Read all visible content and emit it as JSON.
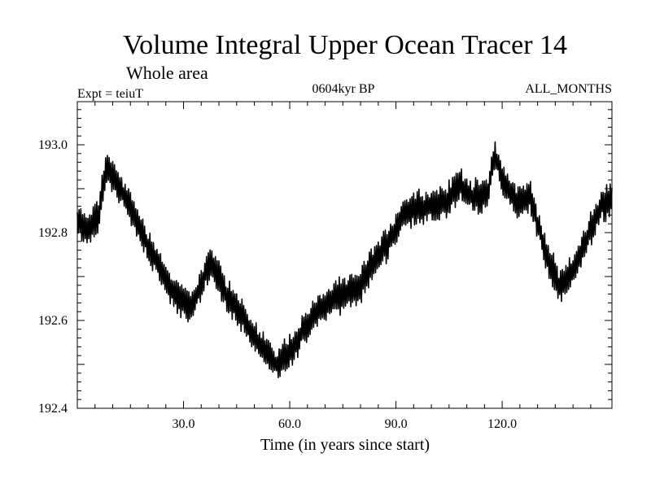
{
  "chart_data": {
    "type": "line",
    "title": "Volume Integral Upper Ocean Tracer 14",
    "subtitle": "Whole area",
    "experiment_label": "Expt = teiuT",
    "period_label": "0604kyr BP",
    "months_label": "ALL_MONTHS",
    "xlabel": "Time (in years since start)",
    "ylabel": "",
    "xlim": [
      0,
      151
    ],
    "ylim": [
      192.4,
      193.1
    ],
    "grid": false,
    "xticks": [
      {
        "value": 30,
        "label": "30.0"
      },
      {
        "value": 60,
        "label": "60.0"
      },
      {
        "value": 90,
        "label": "90.0"
      },
      {
        "value": 120,
        "label": "120.0"
      }
    ],
    "yticks": [
      {
        "value": 192.4,
        "label": "192.4"
      },
      {
        "value": 192.6,
        "label": "192.6"
      },
      {
        "value": 192.8,
        "label": "192.8"
      },
      {
        "value": 193.0,
        "label": "193.0"
      }
    ],
    "ytick_labels_override": [
      "192.4",
      "192.6",
      "192.6",
      "192.8",
      "192.8",
      "193.0"
    ],
    "series": [
      {
        "name": "Tracer 14 volume integral",
        "color": "#000000",
        "oscillation_amplitude": 0.028,
        "samples_per_year": 2,
        "trend_x": [
          0,
          3,
          6,
          8,
          12,
          16,
          20,
          24,
          28,
          32,
          36,
          38,
          42,
          46,
          50,
          54,
          56,
          60,
          64,
          68,
          72,
          76,
          80,
          84,
          88,
          92,
          96,
          100,
          104,
          108,
          112,
          116,
          118,
          120,
          124,
          128,
          132,
          136,
          140,
          144,
          148,
          151
        ],
        "trend_y": [
          192.82,
          192.81,
          192.84,
          192.95,
          192.9,
          192.84,
          192.77,
          192.71,
          192.65,
          192.63,
          192.7,
          192.73,
          192.66,
          192.62,
          192.56,
          192.52,
          192.5,
          192.53,
          192.58,
          192.62,
          192.65,
          192.66,
          192.68,
          192.74,
          192.78,
          192.84,
          192.86,
          192.86,
          192.87,
          192.91,
          192.88,
          192.89,
          192.98,
          192.92,
          192.87,
          192.88,
          192.76,
          192.68,
          192.71,
          192.79,
          192.86,
          192.88
        ]
      }
    ]
  }
}
